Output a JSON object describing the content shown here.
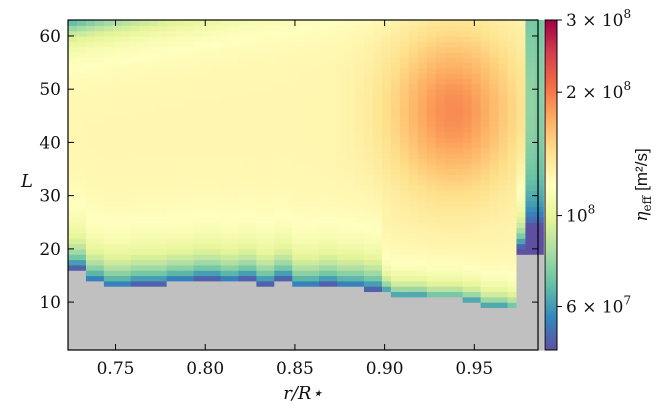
{
  "chart_data": {
    "type": "heatmap",
    "title": "",
    "xlabel": "r/R⋆",
    "ylabel": "L",
    "xlim": [
      0.7235,
      0.9855
    ],
    "ylim": [
      1,
      63
    ],
    "x_ticks": [
      {
        "value": 0.75,
        "label": "0.75"
      },
      {
        "value": 0.8,
        "label": "0.80"
      },
      {
        "value": 0.85,
        "label": "0.85"
      },
      {
        "value": 0.9,
        "label": "0.90"
      },
      {
        "value": 0.95,
        "label": "0.95"
      }
    ],
    "y_ticks": [
      {
        "value": 10,
        "label": "10"
      },
      {
        "value": 20,
        "label": "20"
      },
      {
        "value": 30,
        "label": "30"
      },
      {
        "value": 40,
        "label": "40"
      },
      {
        "value": 50,
        "label": "50"
      },
      {
        "value": 60,
        "label": "60"
      }
    ],
    "grid": {
      "x_start": 0.7235,
      "x_step": 0.005,
      "x_count": 53,
      "y_start": 1,
      "y_step": 1,
      "y_count": 62,
      "masked_color": "#c0c0c0",
      "masked_region": "low-L cells below a ragged boundary near L≈12-16, rising to L≈9-19 at the right edge"
    },
    "colorbar": {
      "label_symbol": "η",
      "label_sub": "eff",
      "label_unit": "[m²/s]",
      "scale": "log",
      "min": 47000000,
      "max": 300000000,
      "colormap": "Spectral_r",
      "colors": [
        "#5e4fa2",
        "#3288bd",
        "#66c2a5",
        "#abdda4",
        "#e6f598",
        "#ffffbf",
        "#fee08b",
        "#fdae61",
        "#f46d43",
        "#d53e4f",
        "#9e0142"
      ],
      "ticks": [
        {
          "value": 60000000,
          "mant": "6 × 10",
          "exp": "7"
        },
        {
          "value": 100000000,
          "mant": "10",
          "exp": "8"
        },
        {
          "value": 200000000,
          "mant": "2 × 10",
          "exp": "8"
        },
        {
          "value": 300000000,
          "mant": "3 × 10",
          "exp": "8"
        }
      ]
    },
    "field_model": {
      "note": "smooth approximation of plotted field, values in m²/s",
      "peak": {
        "x": 0.938,
        "y": 46,
        "value": 190000000
      },
      "background_value": 125000000,
      "low_boundary_value": 50000000
    }
  }
}
